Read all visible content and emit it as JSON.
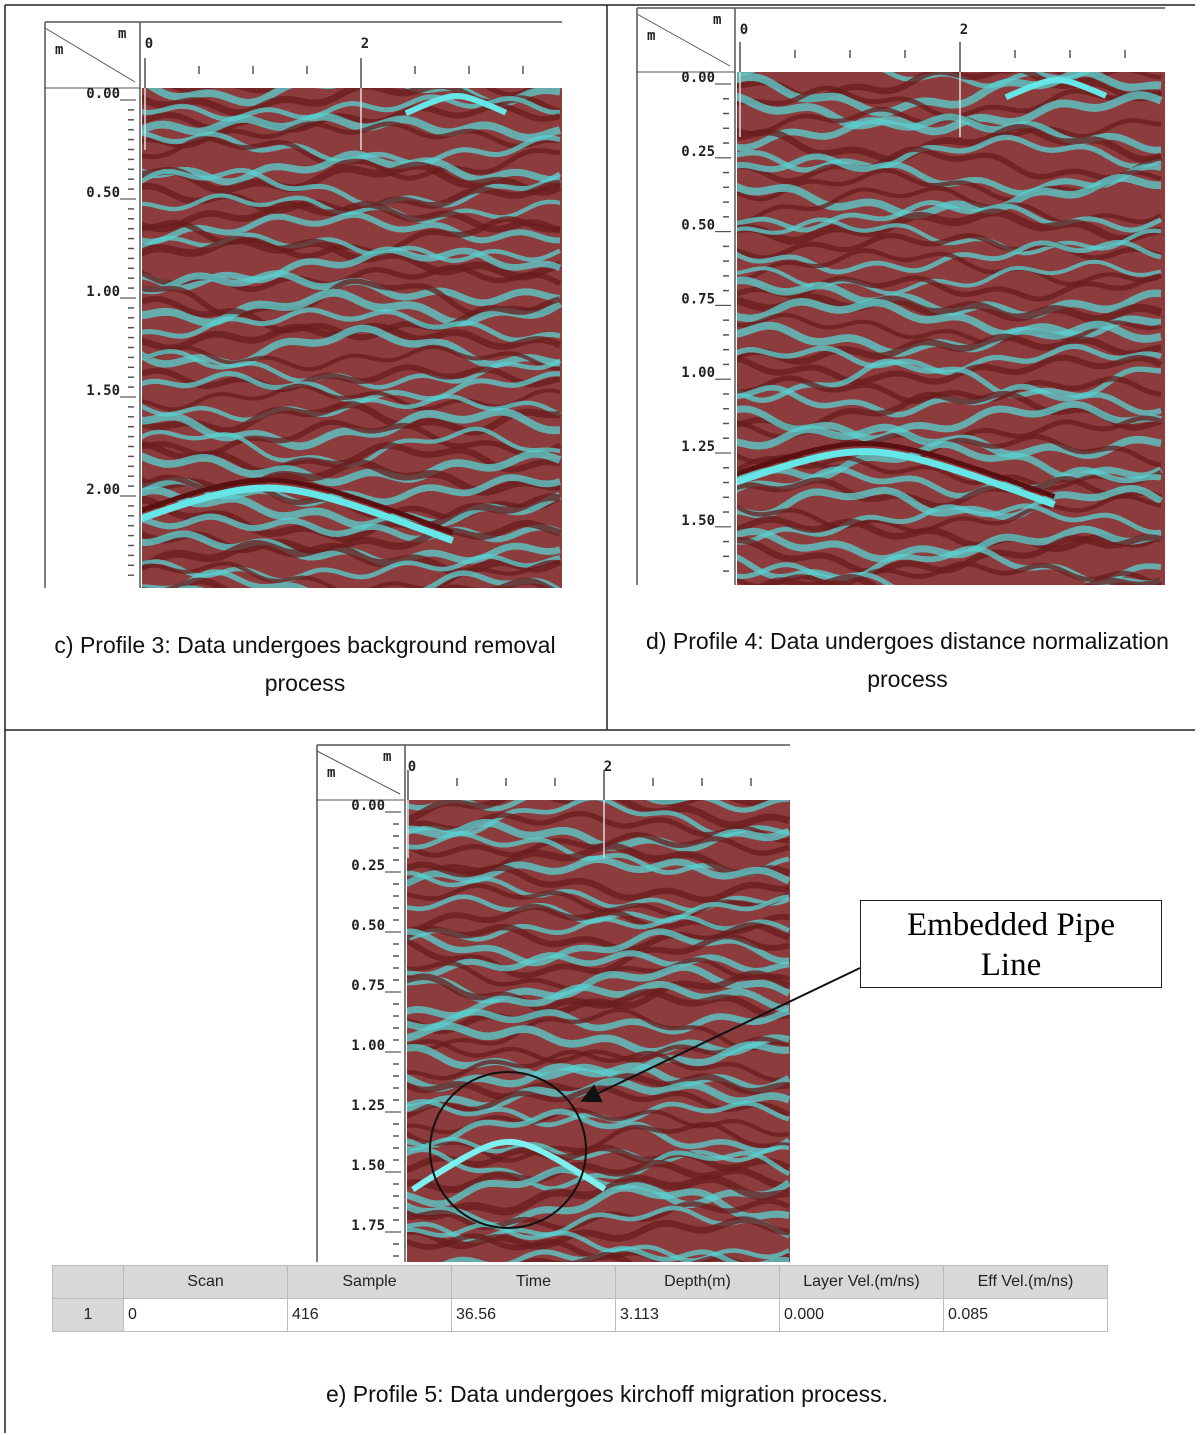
{
  "panels": [
    {
      "x_unit": "m",
      "y_unit": "m",
      "x_ticks": [
        "0",
        "2"
      ],
      "y_ticks": [
        "0.00",
        "0.50",
        "1.00",
        "1.50",
        "2.00"
      ],
      "caption": "c) Profile 3: Data undergoes background removal process"
    },
    {
      "x_unit": "m",
      "y_unit": "m",
      "x_ticks": [
        "0",
        "2"
      ],
      "y_ticks": [
        "0.00",
        "0.25",
        "0.50",
        "0.75",
        "1.00",
        "1.25",
        "1.50"
      ],
      "caption": "d) Profile 4: Data undergoes distance normalization process"
    },
    {
      "x_unit": "m",
      "y_unit": "m",
      "x_ticks": [
        "0",
        "2"
      ],
      "y_ticks": [
        "0.00",
        "0.25",
        "0.50",
        "0.75",
        "1.00",
        "1.25",
        "1.50",
        "1.75"
      ],
      "caption": "e) Profile 5: Data undergoes kirchoff migration process."
    }
  ],
  "annotation": "Embedded Pipe Line",
  "table": {
    "headers": [
      "Scan",
      "Sample",
      "Time",
      "Depth(m)",
      "Layer Vel.(m/ns)",
      "Eff Vel.(m/ns)"
    ],
    "rows": [
      {
        "label": "1",
        "cells": [
          "0",
          "416",
          "36.56",
          "3.113",
          "0.000",
          "0.085"
        ]
      }
    ]
  }
}
